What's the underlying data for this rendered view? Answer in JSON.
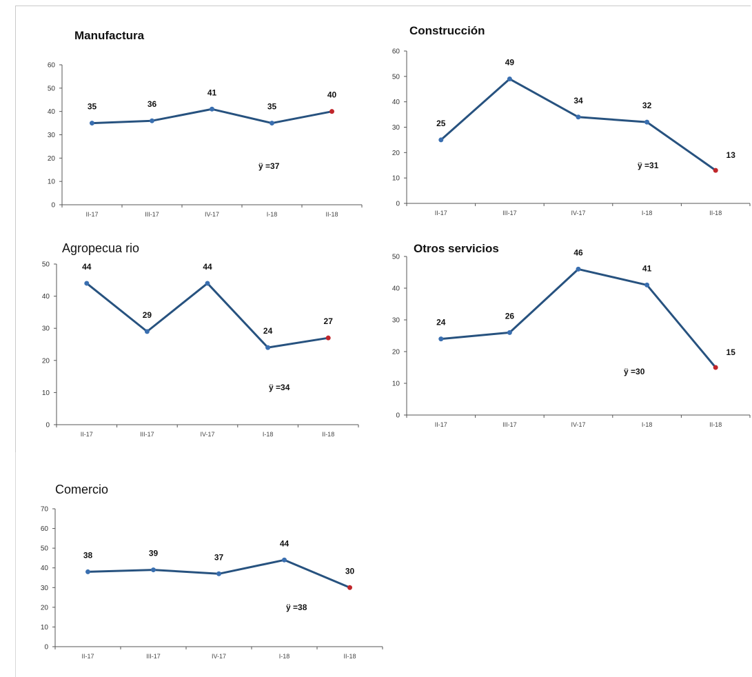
{
  "chart_data": [
    {
      "id": "manufactura",
      "type": "line",
      "title": "Manufactura",
      "categories": [
        "II-17",
        "III-17",
        "IV-17",
        "I-18",
        "II-18"
      ],
      "values": [
        35,
        36,
        41,
        35,
        40
      ],
      "ylim": [
        0,
        60
      ],
      "yticks": [
        "0",
        "10",
        "20",
        "30",
        "40",
        "50",
        "60"
      ],
      "annotation": "ÿ =37",
      "colors": {
        "line": "#27527f",
        "point": "#3a6fb0",
        "last_point": "#c0262b"
      }
    },
    {
      "id": "construccion",
      "type": "line",
      "title": "Construcción",
      "categories": [
        "II-17",
        "III-17",
        "IV-17",
        "I-18",
        "II-18"
      ],
      "values": [
        25,
        49,
        34,
        32,
        13
      ],
      "ylim": [
        0,
        60
      ],
      "yticks": [
        "0",
        "10",
        "20",
        "30",
        "40",
        "50",
        "60"
      ],
      "annotation": "ÿ =31",
      "colors": {
        "line": "#27527f",
        "point": "#3a6fb0",
        "last_point": "#c0262b"
      }
    },
    {
      "id": "agropecuario",
      "type": "line",
      "title": "Agropecua rio",
      "categories": [
        "II-17",
        "III-17",
        "IV-17",
        "I-18",
        "II-18"
      ],
      "values": [
        44,
        29,
        44,
        24,
        27
      ],
      "ylim": [
        0,
        50
      ],
      "yticks": [
        "0",
        "10",
        "20",
        "30",
        "40",
        "50"
      ],
      "annotation": "ÿ =34",
      "colors": {
        "line": "#27527f",
        "point": "#3a6fb0",
        "last_point": "#c0262b"
      }
    },
    {
      "id": "otros",
      "type": "line",
      "title": "Otros servicios",
      "categories": [
        "II-17",
        "III-17",
        "IV-17",
        "I-18",
        "II-18"
      ],
      "values": [
        24,
        26,
        46,
        41,
        15
      ],
      "ylim": [
        0,
        50
      ],
      "yticks": [
        "0",
        "10",
        "20",
        "30",
        "40",
        "50"
      ],
      "annotation": "ÿ =30",
      "colors": {
        "line": "#27527f",
        "point": "#3a6fb0",
        "last_point": "#c0262b"
      }
    },
    {
      "id": "comercio",
      "type": "line",
      "title": "Comercio",
      "categories": [
        "II-17",
        "III-17",
        "IV-17",
        "I-18",
        "II-18"
      ],
      "values": [
        38,
        39,
        37,
        44,
        30
      ],
      "ylim": [
        0,
        70
      ],
      "yticks": [
        "0",
        "10",
        "20",
        "30",
        "40",
        "50",
        "60",
        "70"
      ],
      "annotation": "ÿ =38",
      "colors": {
        "line": "#27527f",
        "point": "#3a6fb0",
        "last_point": "#c0262b"
      }
    }
  ]
}
